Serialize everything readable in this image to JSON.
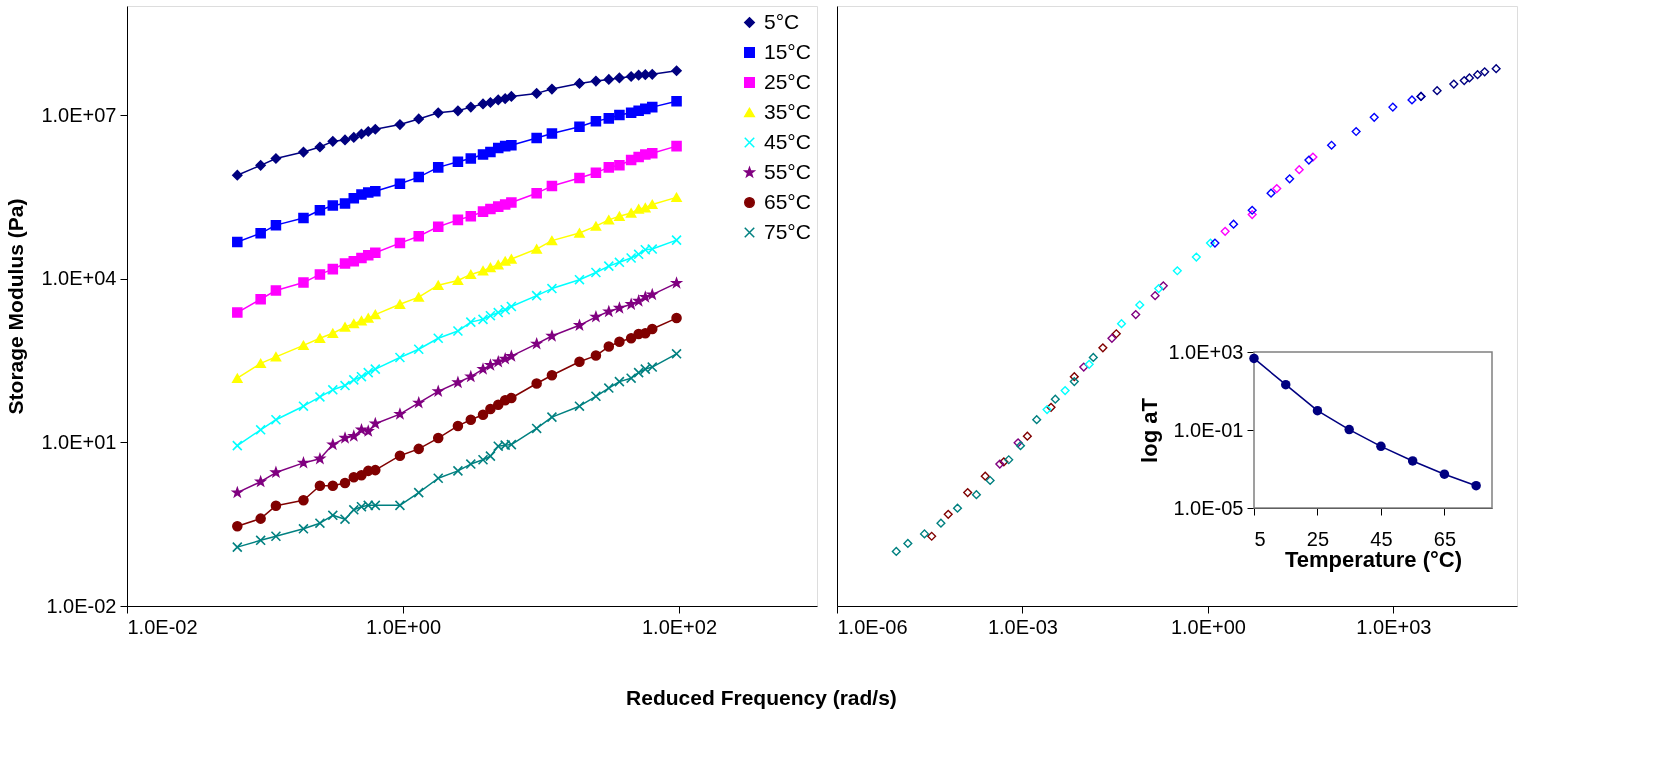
{
  "chart_data": [
    {
      "type": "line",
      "log": "xy",
      "ylabel": "Storage Modulus (Pa)",
      "xlabel": "Reduced Frequency (rad/s)",
      "legend": "top right",
      "line_style": "solid",
      "xlim": [
        0.01,
        1000
      ],
      "ylim": [
        0.01,
        1000000000.0
      ],
      "xticks": [
        {
          "value": 0.01,
          "label": "1.0E-02"
        },
        {
          "value": 1,
          "label": "1.0E+00"
        },
        {
          "value": 100,
          "label": "1.0E+02"
        }
      ],
      "yticks": [
        {
          "value": 0.01,
          "label": "1.0E-02"
        },
        {
          "value": 10,
          "label": "1.0E+01"
        },
        {
          "value": 10000,
          "label": "1.0E+04"
        },
        {
          "value": 10000000,
          "label": "1.0E+07"
        }
      ],
      "x": [
        0.063,
        0.093,
        0.12,
        0.19,
        0.25,
        0.31,
        0.38,
        0.44,
        0.5,
        0.56,
        0.63,
        0.95,
        1.3,
        1.8,
        2.5,
        3.1,
        3.8,
        4.3,
        4.9,
        5.5,
        6.1,
        9.3,
        12,
        19,
        25,
        31,
        37,
        45,
        51,
        57,
        64,
        96
      ],
      "series": [
        {
          "name": "5°C",
          "color": "#000080",
          "marker": "diamond",
          "values": [
            790000.0,
            1200000.0,
            1600000.0,
            2100000.0,
            2600000.0,
            3300000.0,
            3500000.0,
            3900000.0,
            4500000.0,
            5000000.0,
            5500000.0,
            6700000.0,
            8500000.0,
            11000000.0,
            12000000.0,
            14000000.0,
            16000000.0,
            17000000.0,
            19000000.0,
            20000000.0,
            22000000.0,
            25000000.0,
            30000000.0,
            38000000.0,
            42000000.0,
            45000000.0,
            48000000.0,
            51000000.0,
            54000000.0,
            55000000.0,
            56000000.0,
            65000000.0
          ]
        },
        {
          "name": "15°C",
          "color": "#0000ff",
          "marker": "square",
          "values": [
            47000.0,
            68000.0,
            96000.0,
            130000.0,
            180000.0,
            220000.0,
            240000.0,
            300000.0,
            350000.0,
            380000.0,
            400000.0,
            550000.0,
            730000.0,
            1100000.0,
            1400000.0,
            1600000.0,
            1900000.0,
            2100000.0,
            2500000.0,
            2700000.0,
            2800000.0,
            3800000.0,
            4600000.0,
            6100000.0,
            7700000.0,
            8700000.0,
            10000000.0,
            11000000.0,
            12000000.0,
            13000000.0,
            14000000.0,
            18000000.0
          ]
        },
        {
          "name": "25°C",
          "color": "#ff00ff",
          "marker": "square",
          "values": [
            2400.0,
            4200.0,
            6100.0,
            8500.0,
            12000.0,
            15000.0,
            19000.0,
            21000.0,
            24000.0,
            27000.0,
            30000.0,
            45000.0,
            60000.0,
            90000.0,
            120000.0,
            140000.0,
            170000.0,
            190000.0,
            210000.0,
            230000.0,
            250000.0,
            370000.0,
            500000.0,
            700000.0,
            880000.0,
            1100000.0,
            1200000.0,
            1500000.0,
            1700000.0,
            1900000.0,
            2000000.0,
            2700000.0
          ]
        },
        {
          "name": "35°C",
          "color": "#ffff00",
          "marker": "triangle",
          "values": [
            150,
            280,
            370,
            600,
            810,
            1000.0,
            1300.0,
            1500.0,
            1700.0,
            1900.0,
            2200.0,
            3400.0,
            4600.0,
            7600.0,
            9300.0,
            12000.0,
            14000.0,
            16000.0,
            18000.0,
            21000.0,
            23000.0,
            35000.0,
            50000.0,
            69000.0,
            92000.0,
            120000.0,
            140000.0,
            160000.0,
            190000.0,
            200000.0,
            230000.0,
            310000.0
          ]
        },
        {
          "name": "45°C",
          "color": "#00ffff",
          "marker": "cross",
          "values": [
            8.7,
            17,
            26,
            46,
            68,
            92,
            110,
            140,
            160,
            190,
            220,
            360,
            510,
            810,
            1100.0,
            1600.0,
            1800.0,
            2100.0,
            2400.0,
            2700.0,
            3100.0,
            4900.0,
            6600.0,
            9600.0,
            13000.0,
            17000.0,
            20000.0,
            24000.0,
            28000.0,
            34000.0,
            35000.0,
            51000.0
          ]
        },
        {
          "name": "55°C",
          "color": "#800080",
          "marker": "star",
          "values": [
            1.2,
            1.9,
            2.8,
            4.2,
            5.0,
            9.1,
            12,
            13,
            17,
            16,
            22,
            33,
            53,
            86,
            125,
            160,
            220,
            260,
            300,
            340,
            380,
            640,
            890,
            1400.0,
            2000.0,
            2500.0,
            2900.0,
            3400.0,
            3900.0,
            4600.0,
            5100.0,
            8300.0
          ]
        },
        {
          "name": "65°C",
          "color": "#800000",
          "marker": "circle",
          "values": [
            0.29,
            0.4,
            0.69,
            0.87,
            1.6,
            1.6,
            1.8,
            2.3,
            2.5,
            3.0,
            3.1,
            5.7,
            7.6,
            12,
            20,
            26,
            32,
            41,
            49,
            59,
            65,
            120,
            170,
            300,
            390,
            570,
            700,
            810,
            970,
            1000.0,
            1200.0,
            1900.0
          ]
        },
        {
          "name": "75°C",
          "color": "#008080",
          "marker": "cross",
          "values": [
            0.12,
            0.16,
            0.19,
            0.26,
            0.33,
            0.46,
            0.39,
            0.58,
            0.66,
            0.7,
            0.7,
            0.7,
            1.2,
            2.2,
            3.0,
            4.0,
            4.8,
            5.6,
            8.5,
            8.9,
            9.1,
            18,
            29,
            46,
            70,
            99,
            130,
            150,
            190,
            220,
            240,
            420
          ]
        }
      ]
    },
    {
      "type": "scatter",
      "log": "xy",
      "marker": "diamond",
      "tick_labels": "x",
      "xlim": [
        1e-06,
        100000.0
      ],
      "ylim": [
        0.01,
        1000000000.0
      ],
      "xticks": [
        {
          "value": 1e-06,
          "label": "1.0E-06"
        },
        {
          "value": 0.001,
          "label": "1.0E-03"
        },
        {
          "value": 1,
          "label": "1.0E+00"
        },
        {
          "value": 1000,
          "label": "1.0E+03"
        }
      ],
      "series": [
        {
          "color": "#800000",
          "x": [
            3.4e-05,
            6.3e-05,
            0.00013,
            0.00025,
            0.0005,
            0.0012,
            0.0029,
            0.0069,
            0.02,
            0.033
          ],
          "values": [
            0.19,
            0.48,
            1.2,
            2.4,
            4.4,
            13,
            44,
            160,
            540,
            980
          ]
        },
        {
          "color": "#800080",
          "x": [
            0.00043,
            0.00085,
            0.0098,
            0.028,
            0.068,
            0.14,
            0.19
          ],
          "values": [
            4.0,
            9.8,
            240,
            810,
            2200.0,
            4900.0,
            7400.0
          ]
        },
        {
          "color": "#00ffff",
          "x": [
            0.0025,
            0.0049,
            0.012,
            0.04,
            0.079,
            0.16,
            0.32,
            0.65,
            1.1
          ],
          "values": [
            40,
            89,
            270,
            1500.0,
            3300.0,
            6600.0,
            14000.0,
            25000.0,
            45000.0
          ]
        },
        {
          "color": "#008080",
          "x": [
            9.1e-06,
            1.4e-05,
            2.6e-05,
            4.8e-05,
            8.9e-05,
            0.00018,
            0.0003,
            0.0006,
            0.00093,
            0.0017,
            0.0034,
            0.0069,
            0.014
          ],
          "values": [
            0.1,
            0.14,
            0.21,
            0.33,
            0.62,
            1.1,
            2.0,
            4.8,
            8.7,
            26,
            62,
            130,
            360
          ]
        },
        {
          "color": "#ff00ff",
          "x": [
            1.9,
            5.2,
            13,
            30,
            50
          ],
          "values": [
            74000.0,
            150000.0,
            450000.0,
            1000000.0,
            1700000.0
          ]
        },
        {
          "color": "#0000ff",
          "x": [
            1.3,
            2.6,
            5.2,
            10.5,
            21,
            43,
            100,
            250,
            490,
            980,
            2000.0,
            2800.0
          ],
          "values": [
            45000.0,
            100000.0,
            180000.0,
            370000.0,
            680000.0,
            1500000.0,
            2800000.0,
            5000000.0,
            9100000.0,
            14000000.0,
            19000000.0,
            22000000.0
          ]
        },
        {
          "color": "#000080",
          "x": [
            2800.0,
            5100.0,
            9500.0,
            14000.0,
            17000.0,
            23000.0,
            30000.0,
            46000.0
          ],
          "values": [
            22000000.0,
            28000000.0,
            37000000.0,
            43000000.0,
            48000000.0,
            55000000.0,
            62000000.0,
            71000000.0
          ]
        }
      ]
    },
    {
      "type": "line",
      "log": "y",
      "marker": "circle",
      "line_style": "solid",
      "xlabel": "Temperature (°C)",
      "ylabel": "log aT",
      "xlim": [
        5,
        80
      ],
      "ylim": [
        1e-05,
        1000
      ],
      "xticks": [
        5,
        25,
        45,
        65
      ],
      "yticks": [
        {
          "value": 1e-05,
          "label": "1.0E-05"
        },
        {
          "value": 0.1,
          "label": "1.0E-01"
        },
        {
          "value": 1000,
          "label": "1.0E+03"
        }
      ],
      "x": [
        5,
        15,
        25,
        35,
        45,
        55,
        65,
        75
      ],
      "series": [
        {
          "color": "#000080",
          "values": [
            470,
            21,
            0.98,
            0.105,
            0.0145,
            0.0026,
            0.00054,
            0.00014
          ]
        }
      ]
    }
  ]
}
